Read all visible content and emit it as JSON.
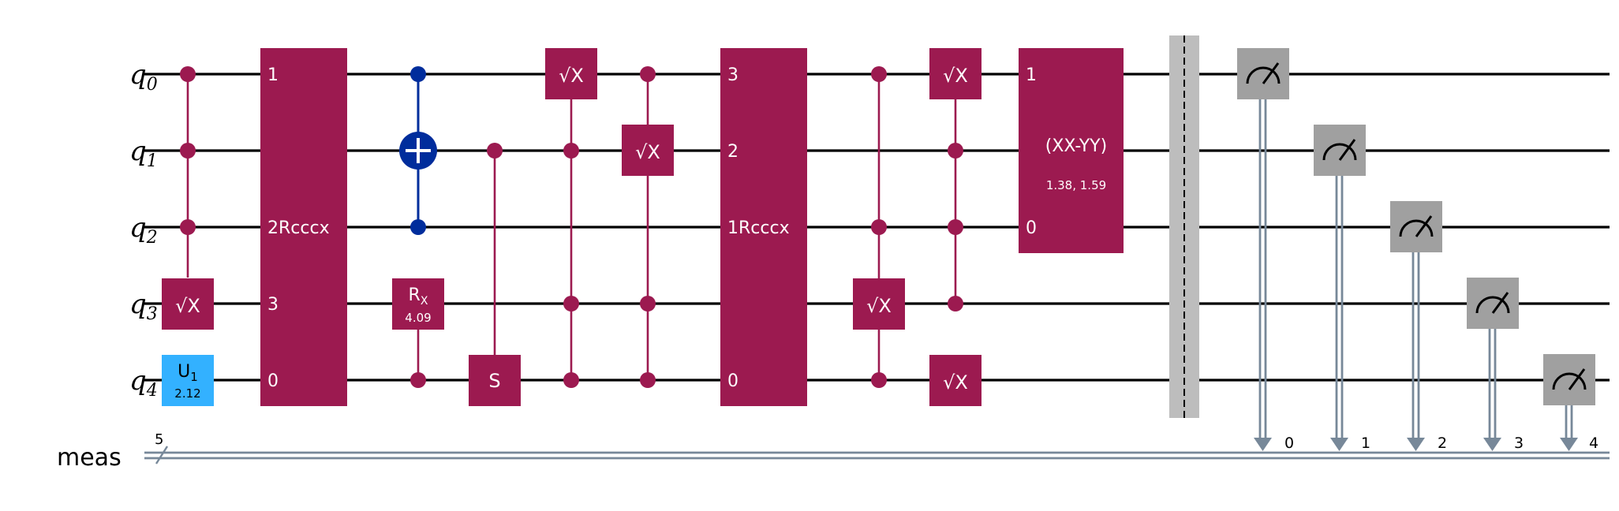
{
  "circuit": {
    "qubits": [
      {
        "label": "q",
        "index": "0"
      },
      {
        "label": "q",
        "index": "1"
      },
      {
        "label": "q",
        "index": "2"
      },
      {
        "label": "q",
        "index": "3"
      },
      {
        "label": "q",
        "index": "4"
      }
    ],
    "classical_register": {
      "label": "meas",
      "size": "5"
    },
    "gates": {
      "u1": {
        "label": "U",
        "sub": "1",
        "param": "2.12"
      },
      "sx_label": "√X",
      "rcccx_1": {
        "name": "Rcccx",
        "pins": {
          "q0": "1",
          "q1": "",
          "q2": "2",
          "q3": "3",
          "q4": "0"
        }
      },
      "rx": {
        "label": "R",
        "sub": "X",
        "param": "4.09"
      },
      "s_label": "S",
      "rcccx_2": {
        "name": "Rcccx",
        "pins": {
          "q0": "3",
          "q1": "2",
          "q2": "1",
          "q3": "",
          "q4": "0"
        }
      },
      "xxyy": {
        "label": "(XX-YY)",
        "params": "1.38, 1.59",
        "pin_top": "1",
        "pin_bottom": "0"
      }
    },
    "measure_bits": [
      "0",
      "1",
      "2",
      "3",
      "4"
    ],
    "colors": {
      "multi_qubit_gate": "#9c1a50",
      "cnot": "#002d9c",
      "u_gate": "#33b1ff",
      "measure": "#a0a0a0",
      "barrier": "#bdbdbd",
      "classical_wire": "#778899"
    }
  }
}
